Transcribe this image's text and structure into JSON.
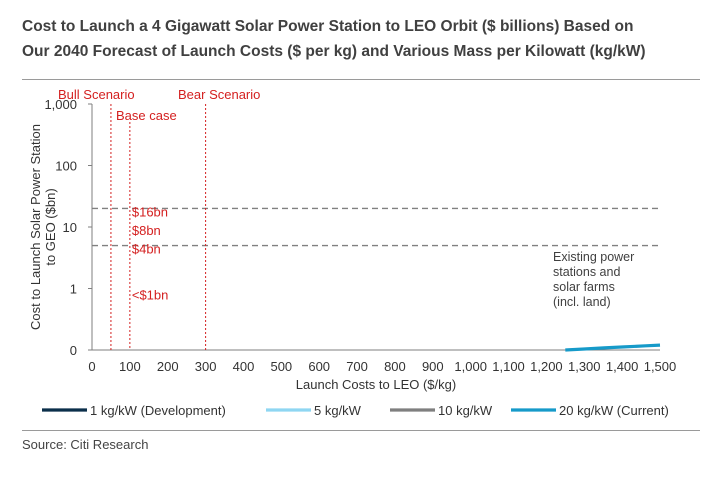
{
  "title_line1": "Cost to Launch a 4 Gigawatt Solar Power Station to LEO Orbit ($ billions) Based on",
  "title_line2": "Our 2040 Forecast of Launch Costs ($ per kg) and Various Mass per Kilowatt (kg/kW)",
  "source": "Source: Citi Research",
  "colors": {
    "s1": "#0b2f4a",
    "s2": "#8fd6f2",
    "s3": "#7f7f7f",
    "s4": "#169ac9",
    "annotation": "#d42020",
    "threshold": "#808080"
  },
  "chart_data": {
    "type": "line",
    "xlabel": "Launch Costs to LEO ($/kg)",
    "ylabel": "Cost to Launch Solar Power Station to GEO ($bn)",
    "xlim": [
      0,
      1500
    ],
    "ylim": [
      0,
      1000
    ],
    "yscale": "log",
    "x_ticks": [
      "0",
      "100",
      "200",
      "300",
      "400",
      "500",
      "600",
      "700",
      "800",
      "900",
      "1,000",
      "1,100",
      "1,200",
      "1,300",
      "1,400",
      "1,500"
    ],
    "y_ticks": [
      {
        "value": 1000,
        "label": "1,000"
      },
      {
        "value": 100,
        "label": "100"
      },
      {
        "value": 10,
        "label": "10"
      },
      {
        "value": 1,
        "label": "1"
      },
      {
        "value": 0,
        "label": "0"
      }
    ],
    "legend_position": "bottom",
    "series": [
      {
        "name": "1 kg/kW (Development)",
        "kg_per_kw": 1
      },
      {
        "name": "5 kg/kW",
        "kg_per_kw": 5
      },
      {
        "name": "10 kg/kW",
        "kg_per_kw": 10
      },
      {
        "name": "20 kg/kW (Current)",
        "kg_per_kw": 20
      }
    ],
    "scenarios": [
      {
        "label": "Bull Scenario",
        "x": 50
      },
      {
        "label": "Base case",
        "x": 100
      },
      {
        "label": "Bear Scenario",
        "x": 300
      }
    ],
    "thresholds": [
      20,
      5
    ],
    "threshold_label": "Existing power\nstations and\nsolar farms\n(incl. land)",
    "point_labels": [
      {
        "label": "$16bn",
        "x": 100,
        "y": 16
      },
      {
        "label": "$8bn",
        "x": 100,
        "y": 8
      },
      {
        "label": "$4bn",
        "x": 100,
        "y": 4
      },
      {
        "label": "<$1bn",
        "x": 100,
        "y": 0.8
      }
    ]
  }
}
